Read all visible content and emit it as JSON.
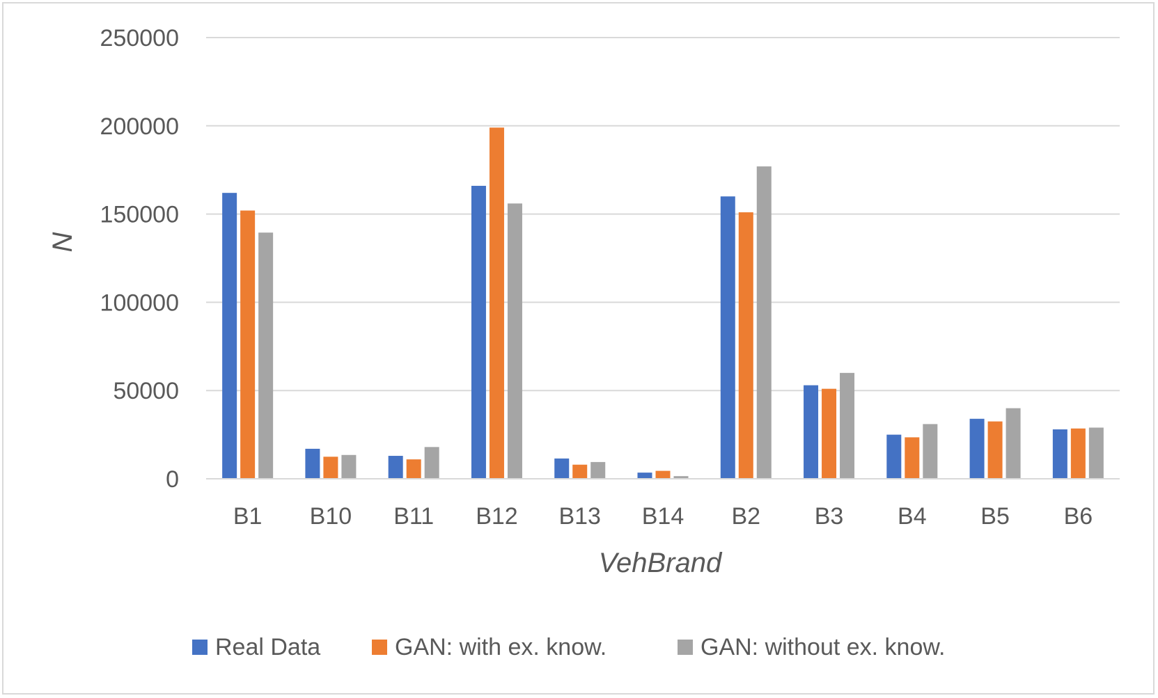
{
  "chart_data": {
    "type": "bar",
    "title": "",
    "xlabel": "VehBrand",
    "ylabel": "N",
    "ylim": [
      0,
      250000
    ],
    "yticks": [
      0,
      50000,
      100000,
      150000,
      200000,
      250000
    ],
    "ytick_labels": [
      "0",
      "50000",
      "100000",
      "150000",
      "200000",
      "250000"
    ],
    "grid": true,
    "legend_position": "bottom",
    "categories": [
      "B1",
      "B10",
      "B11",
      "B12",
      "B13",
      "B14",
      "B2",
      "B3",
      "B4",
      "B5",
      "B6"
    ],
    "series": [
      {
        "name": "Real Data",
        "color": "#4472c4",
        "values": [
          162000,
          17000,
          13000,
          166000,
          11500,
          3500,
          160000,
          53000,
          25000,
          34000,
          28000
        ]
      },
      {
        "name": "GAN: with ex. know.",
        "color": "#ed7d31",
        "values": [
          152000,
          12500,
          11000,
          199000,
          8000,
          4500,
          151000,
          51000,
          23500,
          32500,
          28500
        ]
      },
      {
        "name": "GAN: without ex. know.",
        "color": "#a5a5a5",
        "values": [
          139500,
          13500,
          18000,
          156000,
          9500,
          1500,
          177000,
          60000,
          31000,
          40000,
          29000
        ]
      }
    ]
  }
}
